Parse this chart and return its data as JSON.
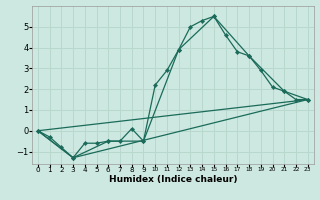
{
  "xlabel": "Humidex (Indice chaleur)",
  "xlim": [
    -0.5,
    23.5
  ],
  "ylim": [
    -1.6,
    6.0
  ],
  "yticks": [
    -1,
    0,
    1,
    2,
    3,
    4,
    5
  ],
  "xticks": [
    0,
    1,
    2,
    3,
    4,
    5,
    6,
    7,
    8,
    9,
    10,
    11,
    12,
    13,
    14,
    15,
    16,
    17,
    18,
    19,
    20,
    21,
    22,
    23
  ],
  "bg_color": "#cde8e0",
  "grid_color": "#b8d8ce",
  "line_color": "#1a6b5a",
  "line1_x": [
    0,
    1,
    2,
    3,
    4,
    5,
    6,
    7,
    8,
    9,
    10,
    11,
    12,
    13,
    14,
    15,
    16,
    17,
    18,
    19,
    20,
    21,
    22,
    23
  ],
  "line1_y": [
    0.0,
    -0.3,
    -0.8,
    -1.3,
    -0.6,
    -0.6,
    -0.5,
    -0.5,
    0.1,
    -0.5,
    2.2,
    2.9,
    3.9,
    5.0,
    5.3,
    5.5,
    4.6,
    3.8,
    3.6,
    2.9,
    2.1,
    1.9,
    1.5,
    1.5
  ],
  "line2_x": [
    0,
    3,
    6,
    9,
    12,
    15,
    18,
    21,
    23
  ],
  "line2_y": [
    0.0,
    -1.3,
    -0.5,
    -0.5,
    3.9,
    5.5,
    3.6,
    1.9,
    1.5
  ],
  "line3_x": [
    0,
    23
  ],
  "line3_y": [
    0.0,
    1.5
  ],
  "line4_x": [
    0,
    3,
    23
  ],
  "line4_y": [
    0.0,
    -1.3,
    1.5
  ]
}
